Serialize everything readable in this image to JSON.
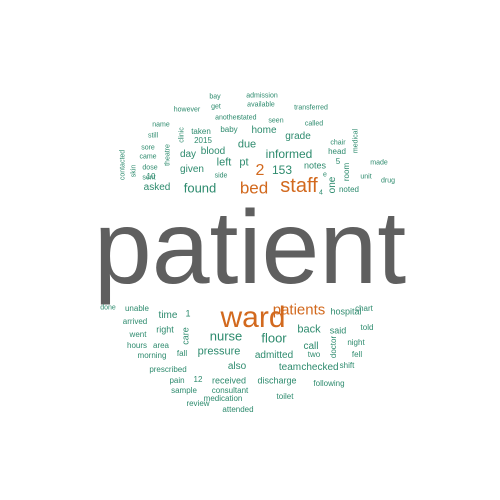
{
  "colors": {
    "teal": "#2e8b6e",
    "orange": "#d2691e",
    "gray": "#5f5f5f"
  },
  "words": [
    {
      "text": "patient",
      "color": "gray"
    },
    {
      "text": "ward",
      "color": "orange"
    },
    {
      "text": "staff",
      "color": "orange"
    },
    {
      "text": "patients",
      "color": "orange"
    },
    {
      "text": "bed",
      "color": "orange"
    },
    {
      "text": "2",
      "color": "orange"
    },
    {
      "text": "found",
      "color": "teal"
    },
    {
      "text": "nurse",
      "color": "teal"
    },
    {
      "text": "floor",
      "color": "teal"
    },
    {
      "text": "informed",
      "color": "teal"
    },
    {
      "text": "153",
      "color": "teal"
    },
    {
      "text": "pt",
      "color": "teal"
    },
    {
      "text": "left",
      "color": "teal"
    },
    {
      "text": "given",
      "color": "teal"
    },
    {
      "text": "asked",
      "color": "teal"
    },
    {
      "text": "due",
      "color": "teal"
    },
    {
      "text": "day",
      "color": "teal"
    },
    {
      "text": "blood",
      "color": "teal"
    },
    {
      "text": "home",
      "color": "teal"
    },
    {
      "text": "grade",
      "color": "teal"
    },
    {
      "text": "notes",
      "color": "teal"
    },
    {
      "text": "one",
      "color": "teal"
    },
    {
      "text": "back",
      "color": "teal"
    },
    {
      "text": "pressure",
      "color": "teal"
    },
    {
      "text": "time",
      "color": "teal"
    },
    {
      "text": "care",
      "color": "teal"
    },
    {
      "text": "call",
      "color": "teal"
    },
    {
      "text": "admitted",
      "color": "teal"
    },
    {
      "text": "also",
      "color": "teal"
    },
    {
      "text": "hospital",
      "color": "teal"
    },
    {
      "text": "said",
      "color": "teal"
    },
    {
      "text": "team",
      "color": "teal"
    },
    {
      "text": "checked",
      "color": "teal"
    },
    {
      "text": "right",
      "color": "teal"
    },
    {
      "text": "1",
      "color": "teal"
    },
    {
      "text": "noted",
      "color": "teal"
    },
    {
      "text": "room",
      "color": "teal"
    },
    {
      "text": "head",
      "color": "teal"
    },
    {
      "text": "5",
      "color": "teal"
    },
    {
      "text": "10",
      "color": "teal"
    },
    {
      "text": "prescribed",
      "color": "teal"
    },
    {
      "text": "received",
      "color": "teal"
    },
    {
      "text": "discharge",
      "color": "teal"
    },
    {
      "text": "went",
      "color": "teal"
    },
    {
      "text": "arrived",
      "color": "teal"
    },
    {
      "text": "unable",
      "color": "teal"
    },
    {
      "text": "doctor",
      "color": "teal"
    },
    {
      "text": "night",
      "color": "teal"
    },
    {
      "text": "fell",
      "color": "teal"
    },
    {
      "text": "told",
      "color": "teal"
    },
    {
      "text": "chart",
      "color": "teal"
    },
    {
      "text": "two",
      "color": "teal"
    },
    {
      "text": "shift",
      "color": "teal"
    },
    {
      "text": "following",
      "color": "teal"
    },
    {
      "text": "medication",
      "color": "teal"
    },
    {
      "text": "consultant",
      "color": "teal"
    },
    {
      "text": "sample",
      "color": "teal"
    },
    {
      "text": "review",
      "color": "teal"
    },
    {
      "text": "toilet",
      "color": "teal"
    },
    {
      "text": "attended",
      "color": "teal"
    },
    {
      "text": "pain",
      "color": "teal"
    },
    {
      "text": "12",
      "color": "teal"
    },
    {
      "text": "morning",
      "color": "teal"
    },
    {
      "text": "fall",
      "color": "teal"
    },
    {
      "text": "hours",
      "color": "teal"
    },
    {
      "text": "area",
      "color": "teal"
    },
    {
      "text": "done",
      "color": "teal"
    },
    {
      "text": "bay",
      "color": "teal"
    },
    {
      "text": "admission",
      "color": "teal"
    },
    {
      "text": "available",
      "color": "teal"
    },
    {
      "text": "transferred",
      "color": "teal"
    },
    {
      "text": "get",
      "color": "teal"
    },
    {
      "text": "however",
      "color": "teal"
    },
    {
      "text": "another",
      "color": "teal"
    },
    {
      "text": "stated",
      "color": "teal"
    },
    {
      "text": "seen",
      "color": "teal"
    },
    {
      "text": "called",
      "color": "teal"
    },
    {
      "text": "name",
      "color": "teal"
    },
    {
      "text": "taken",
      "color": "teal"
    },
    {
      "text": "baby",
      "color": "teal"
    },
    {
      "text": "still",
      "color": "teal"
    },
    {
      "text": "2015",
      "color": "teal"
    },
    {
      "text": "clinic",
      "color": "teal"
    },
    {
      "text": "sore",
      "color": "teal"
    },
    {
      "text": "came",
      "color": "teal"
    },
    {
      "text": "dose",
      "color": "teal"
    },
    {
      "text": "sent",
      "color": "teal"
    },
    {
      "text": "theatre",
      "color": "teal"
    },
    {
      "text": "contacted",
      "color": "teal"
    },
    {
      "text": "skin",
      "color": "teal"
    },
    {
      "text": "side",
      "color": "teal"
    },
    {
      "text": "chair",
      "color": "teal"
    },
    {
      "text": "medical",
      "color": "teal"
    },
    {
      "text": "made",
      "color": "teal"
    },
    {
      "text": "unit",
      "color": "teal"
    },
    {
      "text": "drug",
      "color": "teal"
    },
    {
      "text": "e",
      "color": "teal"
    },
    {
      "text": "4",
      "color": "teal"
    }
  ]
}
